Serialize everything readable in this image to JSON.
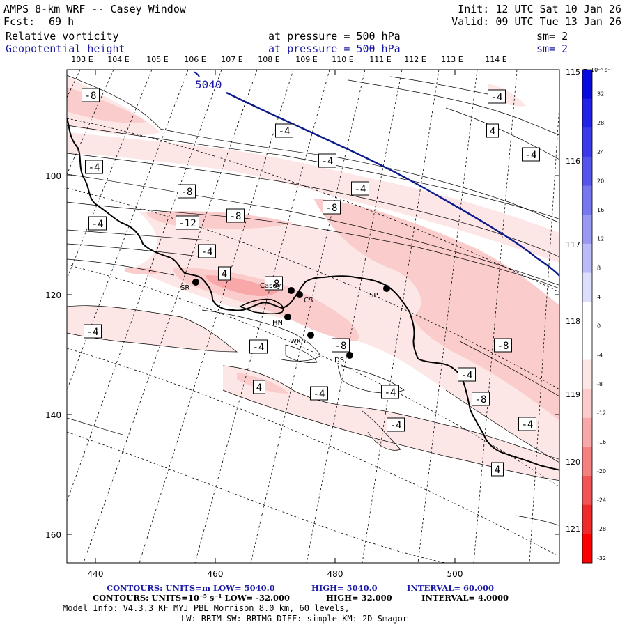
{
  "header": {
    "title": "AMPS 8-km WRF -- Casey Window",
    "forecast_label": "Fcst:",
    "forecast_value": "69 h",
    "init": "Init: 12 UTC Sat 10 Jan 26",
    "valid": "Valid: 09 UTC Tue 13 Jan 26",
    "field1": "Relative vorticity",
    "field1_level": "at pressure =  500 hPa",
    "field1_sm": "sm= 2",
    "field2": "Geopotential height",
    "field2_level": "at pressure =  500 hPa",
    "field2_sm": "sm= 2"
  },
  "lon_labels_top": [
    "103 E",
    "104 E",
    "105 E",
    "106 E",
    "107 E",
    "108 E",
    "109 E",
    "110 E",
    "111 E",
    "112 E",
    "113 E",
    "114 E"
  ],
  "lon_labels_right": [
    "115 E",
    "116 E",
    "117 E",
    "118 E",
    "119 E",
    "120 E",
    "121 E"
  ],
  "y_ticks": [
    "100",
    "120",
    "140",
    "160"
  ],
  "x_ticks": [
    "440",
    "460",
    "480",
    "500"
  ],
  "colorbar": {
    "unit": "10⁻⁵ s⁻¹",
    "labels": [
      "32",
      "28",
      "24",
      "20",
      "16",
      "12",
      "8",
      "4",
      "0",
      "-4",
      "-8",
      "-12",
      "-16",
      "-20",
      "-24",
      "-28",
      "-32"
    ],
    "colors": [
      "#0a0adc",
      "#2222e6",
      "#3a3ae8",
      "#5555ec",
      "#7777f0",
      "#9999f4",
      "#bbbbf8",
      "#ddddfc",
      "#ffffff",
      "#ffffff",
      "#fde6e6",
      "#fbcccc",
      "#f8a8a8",
      "#f58080",
      "#f25555",
      "#ee2a2a",
      "#ff0000"
    ]
  },
  "height_contour_label": "5040",
  "contour_labels": [
    "-8",
    "-4",
    "4",
    "-4",
    "-4",
    "-4",
    "-4",
    "-8",
    "-4",
    "-8",
    "-8",
    "-4",
    "-12",
    "-4",
    "4",
    "-8",
    "-4",
    "-8",
    "-4",
    "-8",
    "-4",
    "4",
    "-4",
    "-4",
    "-8",
    "-4",
    "-4",
    "4"
  ],
  "stations": [
    {
      "code": "SR"
    },
    {
      "code": "Casey"
    },
    {
      "code": "CS"
    },
    {
      "code": "HN"
    },
    {
      "code": "WKS"
    },
    {
      "code": "DS"
    },
    {
      "code": "SP"
    }
  ],
  "footer": {
    "line1_a": "CONTOURS:  UNITS=m  LOW=  5040.0",
    "line1_b": "HIGH=  5040.0",
    "line1_c": "INTERVAL=   60.000",
    "line2_a": "CONTOURS:  UNITS=10⁻⁵ s⁻¹  LOW= -32.000",
    "line2_b": "HIGH=  32.000",
    "line2_c": "INTERVAL=   4.0000",
    "line3": "Model Info: V4.3.3   KF      MYJ PBL  Morrison          8.0 km,  60 levels,",
    "line4": "LW: RRTM SW: RRTMG   DIFF: simple KM: 2D Smagor"
  },
  "colors": {
    "height_contour": "#0a1a8c",
    "label_blue": "#1a1aa6"
  }
}
